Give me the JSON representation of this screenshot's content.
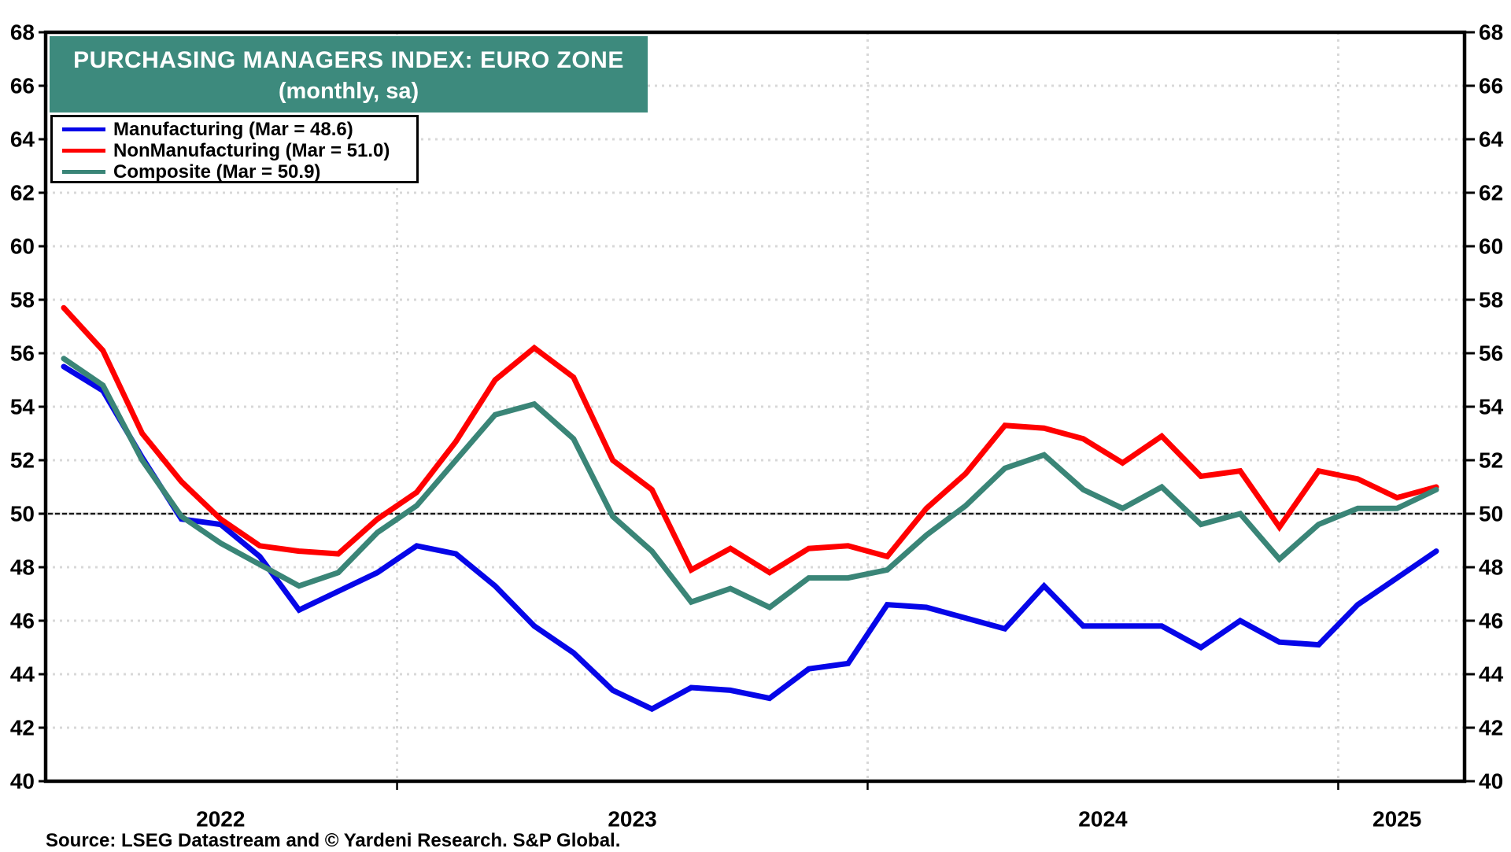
{
  "title": {
    "line1": "PURCHASING MANAGERS INDEX: EURO ZONE",
    "line2": "(monthly, sa)"
  },
  "legend": {
    "items": [
      {
        "label": "Manufacturing (Mar = 48.6)"
      },
      {
        "label": "NonManufacturing (Mar = 51.0)"
      },
      {
        "label": "Composite (Mar = 50.9)"
      }
    ]
  },
  "source_note": "Source: LSEG Datastream and © Yardeni Research. S&P Global.",
  "chart_data": {
    "type": "line",
    "title": "PURCHASING MANAGERS INDEX: EURO ZONE",
    "subtitle": "(monthly, sa)",
    "ylabel": "",
    "xlabel": "",
    "ylim": [
      40,
      68
    ],
    "ytick_step": 2,
    "reference_line_y": 50,
    "grid": "dotted-horizontal-every-2; dotted-vertical-at-january",
    "legend_position": "top-left",
    "x_year_labels": [
      "2022",
      "2023",
      "2024",
      "2025"
    ],
    "x": [
      "Apr 2022",
      "May 2022",
      "Jun 2022",
      "Jul 2022",
      "Aug 2022",
      "Sep 2022",
      "Oct 2022",
      "Nov 2022",
      "Dec 2022",
      "Jan 2023",
      "Feb 2023",
      "Mar 2023",
      "Apr 2023",
      "May 2023",
      "Jun 2023",
      "Jul 2023",
      "Aug 2023",
      "Sep 2023",
      "Oct 2023",
      "Nov 2023",
      "Dec 2023",
      "Jan 2024",
      "Feb 2024",
      "Mar 2024",
      "Apr 2024",
      "May 2024",
      "Jun 2024",
      "Jul 2024",
      "Aug 2024",
      "Sep 2024",
      "Oct 2024",
      "Nov 2024",
      "Dec 2024",
      "Jan 2025",
      "Feb 2025",
      "Mar 2025"
    ],
    "series": [
      {
        "name": "Manufacturing",
        "color": "#0606E8",
        "values": [
          55.5,
          54.6,
          52.1,
          49.8,
          49.6,
          48.4,
          46.4,
          47.1,
          47.8,
          48.8,
          48.5,
          47.3,
          45.8,
          44.8,
          43.4,
          42.7,
          43.5,
          43.4,
          43.1,
          44.2,
          44.4,
          46.6,
          46.5,
          46.1,
          45.7,
          47.3,
          45.8,
          45.8,
          45.8,
          45.0,
          46.0,
          45.2,
          45.1,
          46.6,
          47.6,
          48.6
        ]
      },
      {
        "name": "NonManufacturing",
        "color": "#FF0000",
        "values": [
          57.7,
          56.1,
          53.0,
          51.2,
          49.8,
          48.8,
          48.6,
          48.5,
          49.8,
          50.8,
          52.7,
          55.0,
          56.2,
          55.1,
          52.0,
          50.9,
          47.9,
          48.7,
          47.8,
          48.7,
          48.8,
          48.4,
          50.2,
          51.5,
          53.3,
          53.2,
          52.8,
          51.9,
          52.9,
          51.4,
          51.6,
          49.5,
          51.6,
          51.3,
          50.6,
          51.0
        ]
      },
      {
        "name": "Composite",
        "color": "#3A8577",
        "values": [
          55.8,
          54.8,
          52.0,
          49.9,
          48.9,
          48.1,
          47.3,
          47.8,
          49.3,
          50.3,
          52.0,
          53.7,
          54.1,
          52.8,
          49.9,
          48.6,
          46.7,
          47.2,
          46.5,
          47.6,
          47.6,
          47.9,
          49.2,
          50.3,
          51.7,
          52.2,
          50.9,
          50.2,
          51.0,
          49.6,
          50.0,
          48.3,
          49.6,
          50.2,
          50.2,
          50.9
        ]
      }
    ]
  }
}
